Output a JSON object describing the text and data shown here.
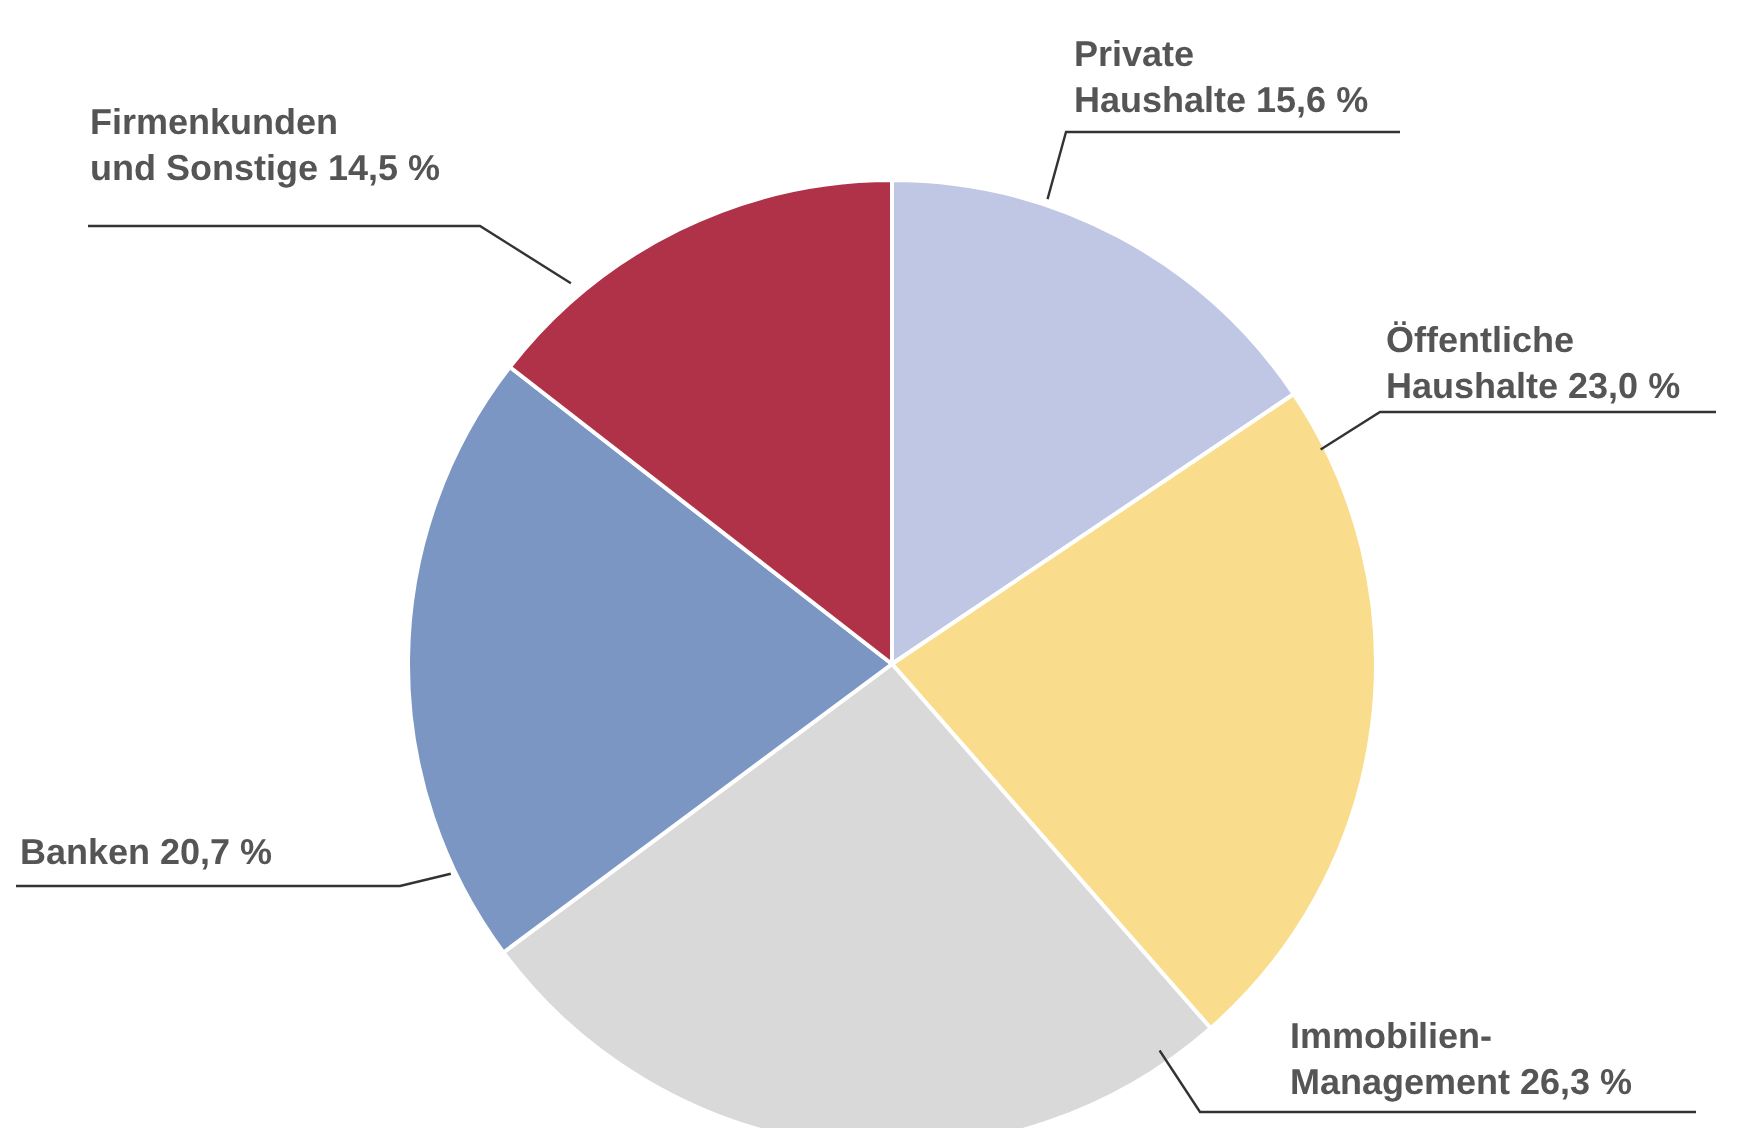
{
  "chart_data": {
    "type": "pie",
    "categories": [
      "Private Haushalte",
      "Öffentliche Haushalte",
      "Immobilien-Management",
      "Banken",
      "Firmenkunden und Sonstige"
    ],
    "values": [
      15.6,
      23.0,
      26.3,
      20.7,
      14.5
    ],
    "value_labels": [
      "15,6 %",
      "23,0 %",
      "26,3 %",
      "20,7 %",
      "14,5 %"
    ],
    "colors": [
      "#c0c7e4",
      "#f9dd8c",
      "#d9d9d9",
      "#7c96c4",
      "#b03248"
    ],
    "legend": false
  }
}
